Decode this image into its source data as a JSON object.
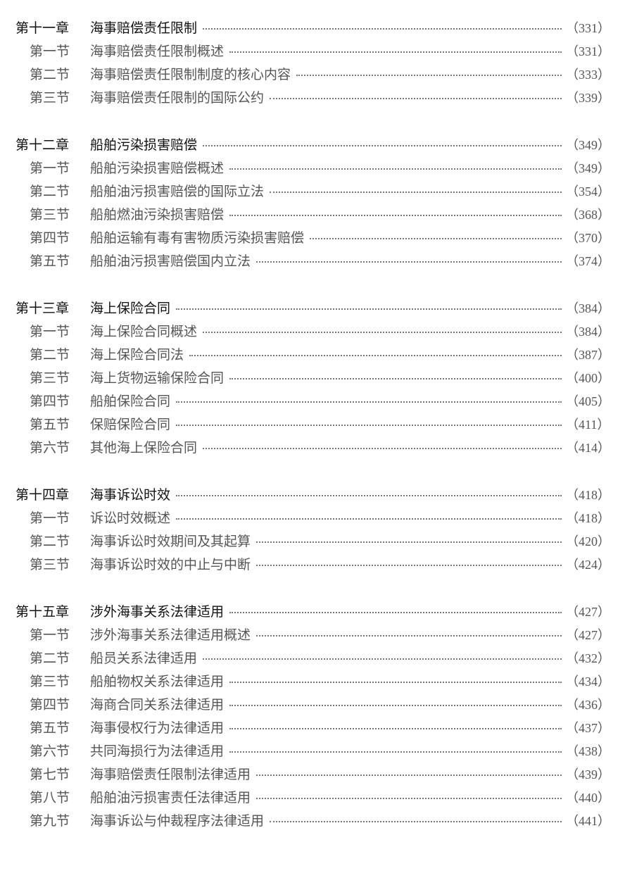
{
  "chapters": [
    {
      "label": "第十一章",
      "title": "海事赔偿责任限制",
      "page": "（331）",
      "sections": [
        {
          "label": "第一节",
          "title": "海事赔偿责任限制概述",
          "page": "（331）"
        },
        {
          "label": "第二节",
          "title": "海事赔偿责任限制制度的核心内容",
          "page": "（333）"
        },
        {
          "label": "第三节",
          "title": "海事赔偿责任限制的国际公约",
          "page": "（339）"
        }
      ]
    },
    {
      "label": "第十二章",
      "title": "船舶污染损害赔偿",
      "page": "（349）",
      "sections": [
        {
          "label": "第一节",
          "title": "船舶污染损害赔偿概述",
          "page": "（349）"
        },
        {
          "label": "第二节",
          "title": "船舶油污损害赔偿的国际立法",
          "page": "（354）"
        },
        {
          "label": "第三节",
          "title": "船舶燃油污染损害赔偿",
          "page": "（368）"
        },
        {
          "label": "第四节",
          "title": "船舶运输有毒有害物质污染损害赔偿",
          "page": "（370）"
        },
        {
          "label": "第五节",
          "title": "船舶油污损害赔偿国内立法",
          "page": "（374）"
        }
      ]
    },
    {
      "label": "第十三章",
      "title": "海上保险合同",
      "page": "（384）",
      "sections": [
        {
          "label": "第一节",
          "title": "海上保险合同概述",
          "page": "（384）"
        },
        {
          "label": "第二节",
          "title": "海上保险合同法",
          "page": "（387）"
        },
        {
          "label": "第三节",
          "title": "海上货物运输保险合同",
          "page": "（400）"
        },
        {
          "label": "第四节",
          "title": "船舶保险合同",
          "page": "（405）"
        },
        {
          "label": "第五节",
          "title": "保赔保险合同",
          "page": "（411）"
        },
        {
          "label": "第六节",
          "title": "其他海上保险合同",
          "page": "（414）"
        }
      ]
    },
    {
      "label": "第十四章",
      "title": "海事诉讼时效",
      "page": "（418）",
      "sections": [
        {
          "label": "第一节",
          "title": "诉讼时效概述",
          "page": "（418）"
        },
        {
          "label": "第二节",
          "title": "海事诉讼时效期间及其起算",
          "page": "（420）"
        },
        {
          "label": "第三节",
          "title": "海事诉讼时效的中止与中断",
          "page": "（424）"
        }
      ]
    },
    {
      "label": "第十五章",
      "title": "涉外海事关系法律适用",
      "page": "（427）",
      "sections": [
        {
          "label": "第一节",
          "title": "涉外海事关系法律适用概述",
          "page": "（427）"
        },
        {
          "label": "第二节",
          "title": "船员关系法律适用",
          "page": "（432）"
        },
        {
          "label": "第三节",
          "title": "船舶物权关系法律适用",
          "page": "（434）"
        },
        {
          "label": "第四节",
          "title": "海商合同关系法律适用",
          "page": "（436）"
        },
        {
          "label": "第五节",
          "title": "海事侵权行为法律适用",
          "page": "（437）"
        },
        {
          "label": "第六节",
          "title": "共同海损行为法律适用",
          "page": "（438）"
        },
        {
          "label": "第七节",
          "title": "海事赔偿责任限制法律适用",
          "page": "（439）"
        },
        {
          "label": "第八节",
          "title": "船舶油污损害责任法律适用",
          "page": "（440）"
        },
        {
          "label": "第九节",
          "title": "海事诉讼与仲裁程序法律适用",
          "page": "（441）"
        }
      ]
    }
  ]
}
